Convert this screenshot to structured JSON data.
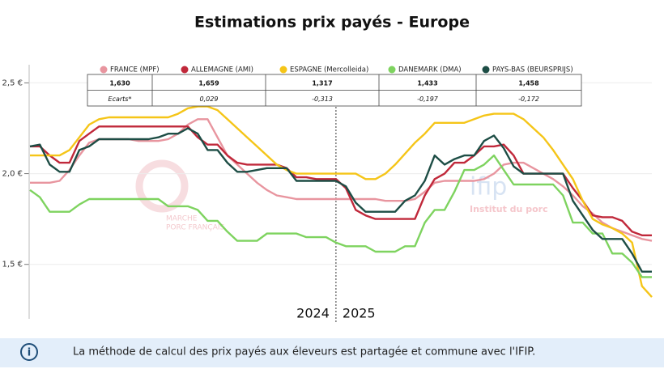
{
  "chart_data": {
    "type": "line",
    "title": "Estimations prix payés - Europe",
    "categories": [
      null,
      null,
      null,
      null,
      null,
      null,
      null,
      null,
      null,
      null,
      null,
      null,
      null,
      null,
      null,
      null,
      null,
      null,
      null,
      null,
      null,
      null,
      null,
      null,
      null,
      null,
      null,
      null,
      null,
      null,
      null,
      null,
      null,
      null,
      null,
      null,
      null,
      null,
      null,
      null,
      null,
      null,
      null,
      null,
      null,
      null,
      null,
      null,
      null,
      null,
      null,
      null,
      null,
      null,
      null,
      null,
      null,
      null,
      null,
      null,
      null,
      null,
      null,
      null
    ],
    "series": [
      {
        "name": "FRANCE (MPF)",
        "color": "#e8959f",
        "values": [
          1.95,
          1.95,
          1.95,
          1.96,
          2.02,
          2.1,
          2.17,
          2.19,
          2.19,
          2.19,
          2.19,
          2.18,
          2.18,
          2.18,
          2.19,
          2.22,
          2.27,
          2.3,
          2.3,
          2.2,
          2.1,
          2.05,
          2.0,
          1.95,
          1.91,
          1.88,
          1.87,
          1.86,
          1.86,
          1.86,
          1.86,
          1.86,
          1.86,
          1.86,
          1.86,
          1.86,
          1.85,
          1.85,
          1.85,
          1.86,
          1.9,
          1.95,
          1.96,
          1.96,
          1.96,
          1.96,
          1.97,
          2.0,
          2.05,
          2.06,
          2.06,
          2.03,
          2.0,
          1.97,
          1.93,
          1.88,
          1.82,
          1.78,
          1.73,
          1.7,
          1.68,
          1.66,
          1.64,
          1.63
        ]
      },
      {
        "name": "ALLEMAGNE (AMI)",
        "color": "#c0283a",
        "values": [
          2.15,
          2.15,
          2.1,
          2.06,
          2.06,
          2.18,
          2.22,
          2.26,
          2.26,
          2.26,
          2.26,
          2.26,
          2.26,
          2.26,
          2.26,
          2.26,
          2.26,
          2.2,
          2.16,
          2.16,
          2.1,
          2.06,
          2.05,
          2.05,
          2.05,
          2.05,
          2.03,
          1.98,
          1.98,
          1.97,
          1.97,
          1.97,
          1.92,
          1.8,
          1.77,
          1.75,
          1.75,
          1.75,
          1.75,
          1.75,
          1.88,
          1.97,
          2.0,
          2.06,
          2.06,
          2.1,
          2.15,
          2.15,
          2.16,
          2.1,
          2.0,
          2.0,
          2.0,
          2.0,
          2.0,
          1.92,
          1.85,
          1.77,
          1.76,
          1.76,
          1.74,
          1.68,
          1.66,
          1.66
        ]
      },
      {
        "name": "ESPAGNE (Mercolleida)",
        "color": "#f5c518",
        "values": [
          2.1,
          2.1,
          2.1,
          2.1,
          2.13,
          2.2,
          2.27,
          2.3,
          2.31,
          2.31,
          2.31,
          2.31,
          2.31,
          2.31,
          2.31,
          2.33,
          2.36,
          2.37,
          2.37,
          2.35,
          2.3,
          2.25,
          2.2,
          2.15,
          2.1,
          2.05,
          2.02,
          2.0,
          2.0,
          2.0,
          2.0,
          2.0,
          2.0,
          2.0,
          1.97,
          1.97,
          2.0,
          2.05,
          2.11,
          2.17,
          2.22,
          2.28,
          2.28,
          2.28,
          2.28,
          2.3,
          2.32,
          2.33,
          2.33,
          2.33,
          2.3,
          2.25,
          2.2,
          2.13,
          2.05,
          1.97,
          1.85,
          1.75,
          1.72,
          1.7,
          1.67,
          1.62,
          1.38,
          1.32
        ]
      },
      {
        "name": "DANEMARK (DMA)",
        "color": "#7ed35f",
        "values": [
          1.91,
          1.87,
          1.79,
          1.79,
          1.79,
          1.83,
          1.86,
          1.86,
          1.86,
          1.86,
          1.86,
          1.86,
          1.86,
          1.86,
          1.82,
          1.82,
          1.82,
          1.8,
          1.74,
          1.74,
          1.68,
          1.63,
          1.63,
          1.63,
          1.67,
          1.67,
          1.67,
          1.67,
          1.65,
          1.65,
          1.65,
          1.62,
          1.6,
          1.6,
          1.6,
          1.57,
          1.57,
          1.57,
          1.6,
          1.6,
          1.73,
          1.8,
          1.8,
          1.9,
          2.02,
          2.02,
          2.05,
          2.1,
          2.02,
          1.94,
          1.94,
          1.94,
          1.94,
          1.94,
          1.88,
          1.73,
          1.73,
          1.67,
          1.67,
          1.56,
          1.56,
          1.51,
          1.43,
          1.43
        ]
      },
      {
        "name": "PAYS-BAS (BEURSPRIJS)",
        "color": "#1d4d45",
        "values": [
          2.15,
          2.16,
          2.05,
          2.01,
          2.01,
          2.13,
          2.15,
          2.19,
          2.19,
          2.19,
          2.19,
          2.19,
          2.19,
          2.2,
          2.22,
          2.22,
          2.25,
          2.22,
          2.13,
          2.13,
          2.06,
          2.01,
          2.01,
          2.02,
          2.03,
          2.03,
          2.03,
          1.96,
          1.96,
          1.96,
          1.96,
          1.96,
          1.93,
          1.84,
          1.79,
          1.79,
          1.79,
          1.79,
          1.85,
          1.88,
          1.96,
          2.1,
          2.05,
          2.08,
          2.1,
          2.1,
          2.18,
          2.21,
          2.14,
          2.04,
          2.0,
          2.0,
          2.0,
          2.0,
          2.0,
          1.85,
          1.77,
          1.69,
          1.64,
          1.64,
          1.64,
          1.56,
          1.46,
          1.46
        ]
      }
    ],
    "ylim": [
      1.2,
      2.6
    ],
    "yticks": [
      {
        "value": 1.5,
        "label": "1,5 €"
      },
      {
        "value": 2.0,
        "label": "2,0 €"
      },
      {
        "value": 2.5,
        "label": "2,5 €"
      }
    ],
    "grid": true,
    "annotations": [
      "2024",
      "2025"
    ],
    "table": {
      "rows": [
        [
          "1,630",
          "1,659",
          "1,317",
          "1,433",
          "1,458"
        ],
        [
          "Ecarts*",
          "0,029",
          "-0,313",
          "-0,197",
          "-0,172"
        ]
      ]
    },
    "watermarks": [
      "MARCHE",
      "PORC FRANÇAIS",
      "ifip",
      "Institut du porc"
    ],
    "note": "La méthode de calcul des prix payés aux éleveurs est partagée et commune avec l'IFIP."
  }
}
